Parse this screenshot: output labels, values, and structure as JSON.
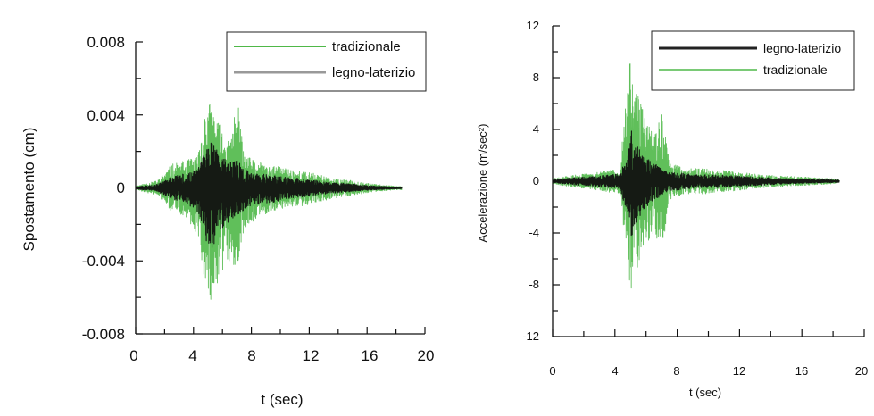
{
  "chart_data": [
    {
      "type": "line",
      "xlabel": "t (sec)",
      "ylabel": "Spostamento  (cm)",
      "xlim": [
        0,
        20
      ],
      "ylim": [
        -0.008,
        0.008
      ],
      "xticks": [
        "0",
        "4",
        "8",
        "12",
        "16",
        "20"
      ],
      "yticks": [
        "0.008",
        "0.004",
        "0",
        "-0.004",
        "-0.008"
      ],
      "legend": "top-right",
      "grid": false,
      "series": [
        {
          "name": "tradizionale",
          "color": "#4fb848",
          "envelope": {
            "t": [
              0,
              1.5,
              2.5,
              3.5,
              4.3,
              4.8,
              5.2,
              5.6,
              6.0,
              6.5,
              7.0,
              7.5,
              8.5,
              9.5,
              10.5,
              11.5,
              12.5,
              13.5,
              15,
              16.5,
              18,
              18.4
            ],
            "upper": [
              0.0001,
              0.0004,
              0.0013,
              0.0015,
              0.0018,
              0.0044,
              0.0048,
              0.0038,
              0.0032,
              0.0025,
              0.0051,
              0.0018,
              0.0014,
              0.0012,
              0.0011,
              0.0009,
              0.0008,
              0.0005,
              0.0004,
              0.0002,
              0.0001,
              0.0001
            ],
            "lower": [
              -0.0001,
              -0.0004,
              -0.0013,
              -0.0016,
              -0.0026,
              -0.0052,
              -0.0065,
              -0.0055,
              -0.0045,
              -0.0042,
              -0.0044,
              -0.0022,
              -0.0016,
              -0.0013,
              -0.0011,
              -0.001,
              -0.0008,
              -0.0006,
              -0.0004,
              -0.0002,
              -0.0001,
              -0.0001
            ]
          }
        },
        {
          "name": "legno-laterizio",
          "color": "#111111",
          "envelope": {
            "t": [
              0,
              1.5,
              2.5,
              3.5,
              4.3,
              4.8,
              5.2,
              5.6,
              6.0,
              6.5,
              7.0,
              7.5,
              8.5,
              9.5,
              10.5,
              11.5,
              12.5,
              13.5,
              15,
              16.5,
              18,
              18.4
            ],
            "upper": [
              5e-05,
              0.0002,
              0.0006,
              0.0008,
              0.001,
              0.0022,
              0.0028,
              0.0022,
              0.0017,
              0.0014,
              0.0016,
              0.001,
              0.0008,
              0.0007,
              0.0006,
              0.0005,
              0.0004,
              0.0003,
              0.0002,
              0.0001,
              5e-05,
              5e-05
            ],
            "lower": [
              -5e-05,
              -0.0002,
              -0.0006,
              -0.0009,
              -0.0013,
              -0.0028,
              -0.0034,
              -0.0028,
              -0.0022,
              -0.0018,
              -0.0016,
              -0.0012,
              -0.0009,
              -0.0008,
              -0.0006,
              -0.0005,
              -0.0004,
              -0.0003,
              -0.0002,
              -0.0001,
              -5e-05,
              -5e-05
            ]
          }
        }
      ]
    },
    {
      "type": "line",
      "xlabel": "t (sec)",
      "ylabel": "Accelerazione (m/sec²)",
      "xlim": [
        0,
        20
      ],
      "ylim": [
        -12,
        12
      ],
      "xticks": [
        "0",
        "4",
        "8",
        "12",
        "16",
        "20"
      ],
      "yticks": [
        "12",
        "8",
        "4",
        "0",
        "-4",
        "-8",
        "-12"
      ],
      "legend": "top-right",
      "grid": false,
      "series": [
        {
          "name": "legno-laterizio",
          "color": "#111111",
          "envelope": {
            "t": [
              0,
              1.5,
              3,
              4.3,
              4.8,
              5.0,
              5.3,
              5.6,
              6.0,
              6.5,
              7.0,
              7.5,
              8.5,
              9.5,
              10.5,
              12,
              13.5,
              15,
              16.5,
              18,
              18.4
            ],
            "upper": [
              0.1,
              0.3,
              0.4,
              0.6,
              2.0,
              4.2,
              3.2,
              2.4,
              1.8,
              1.4,
              1.0,
              0.7,
              0.6,
              0.5,
              0.5,
              0.4,
              0.3,
              0.2,
              0.15,
              0.1,
              0.1
            ],
            "lower": [
              -0.1,
              -0.3,
              -0.4,
              -0.6,
              -2.5,
              -4.8,
              -3.8,
              -2.8,
              -2.0,
              -1.5,
              -1.1,
              -0.8,
              -0.6,
              -0.5,
              -0.5,
              -0.4,
              -0.3,
              -0.2,
              -0.15,
              -0.1,
              -0.1
            ]
          }
        },
        {
          "name": "tradizionale",
          "color": "#4fb848",
          "envelope": {
            "t": [
              0,
              1.5,
              3,
              4.3,
              4.8,
              5.0,
              5.3,
              5.6,
              6.0,
              6.5,
              7.0,
              7.5,
              8.5,
              9.5,
              10.5,
              12,
              13.5,
              15,
              16.5,
              18,
              18.4
            ],
            "upper": [
              0.2,
              0.5,
              0.7,
              1.0,
              7.5,
              9.8,
              7.0,
              6.5,
              5.0,
              3.5,
              5.6,
              1.5,
              1.0,
              1.0,
              0.9,
              0.7,
              0.5,
              0.4,
              0.3,
              0.2,
              0.1
            ],
            "lower": [
              -0.2,
              -0.5,
              -0.7,
              -1.0,
              -6.0,
              -8.5,
              -7.5,
              -6.0,
              -5.0,
              -4.0,
              -5.5,
              -1.5,
              -1.0,
              -1.0,
              -0.9,
              -0.7,
              -0.5,
              -0.4,
              -0.3,
              -0.2,
              -0.1
            ]
          }
        }
      ]
    }
  ]
}
